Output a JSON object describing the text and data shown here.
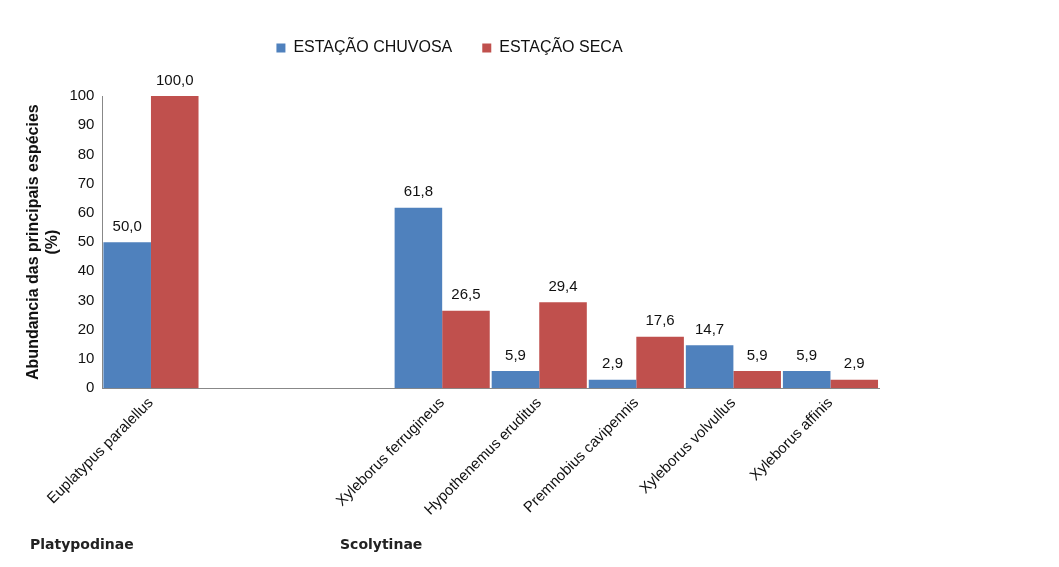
{
  "chart_data": {
    "type": "bar",
    "ylabel": "Abundancia das principais espécies (%)",
    "categories": [
      "Euplatypus paralellus",
      null,
      null,
      "Xyleborus ferrugineus",
      "Hypothenemus eruditus",
      "Premnobius cavipennis",
      "Xyleborus volvullus",
      "Xyleborus affinis"
    ],
    "series": [
      {
        "name": "ESTAÇÃO CHUVOSA",
        "color": "#4f81bd",
        "values": [
          50.0,
          null,
          null,
          61.8,
          5.9,
          2.9,
          14.7,
          5.9
        ],
        "value_labels": [
          "50,0",
          null,
          null,
          "61,8",
          "5,9",
          "2,9",
          "14,7",
          "5,9"
        ]
      },
      {
        "name": "ESTAÇÃO SECA",
        "color": "#c0504d",
        "values": [
          100.0,
          null,
          null,
          26.5,
          29.4,
          17.6,
          5.9,
          2.9
        ],
        "value_labels": [
          "100,0",
          null,
          null,
          "26,5",
          "29,4",
          "17,6",
          "5,9",
          "2,9"
        ]
      }
    ],
    "ylim": [
      0,
      100
    ],
    "yticks": [
      0,
      10,
      20,
      30,
      40,
      50,
      60,
      70,
      80,
      90,
      100
    ],
    "grid": false,
    "legend": "top",
    "annotations": [
      "Platypodinae",
      "Scolytinae"
    ]
  }
}
